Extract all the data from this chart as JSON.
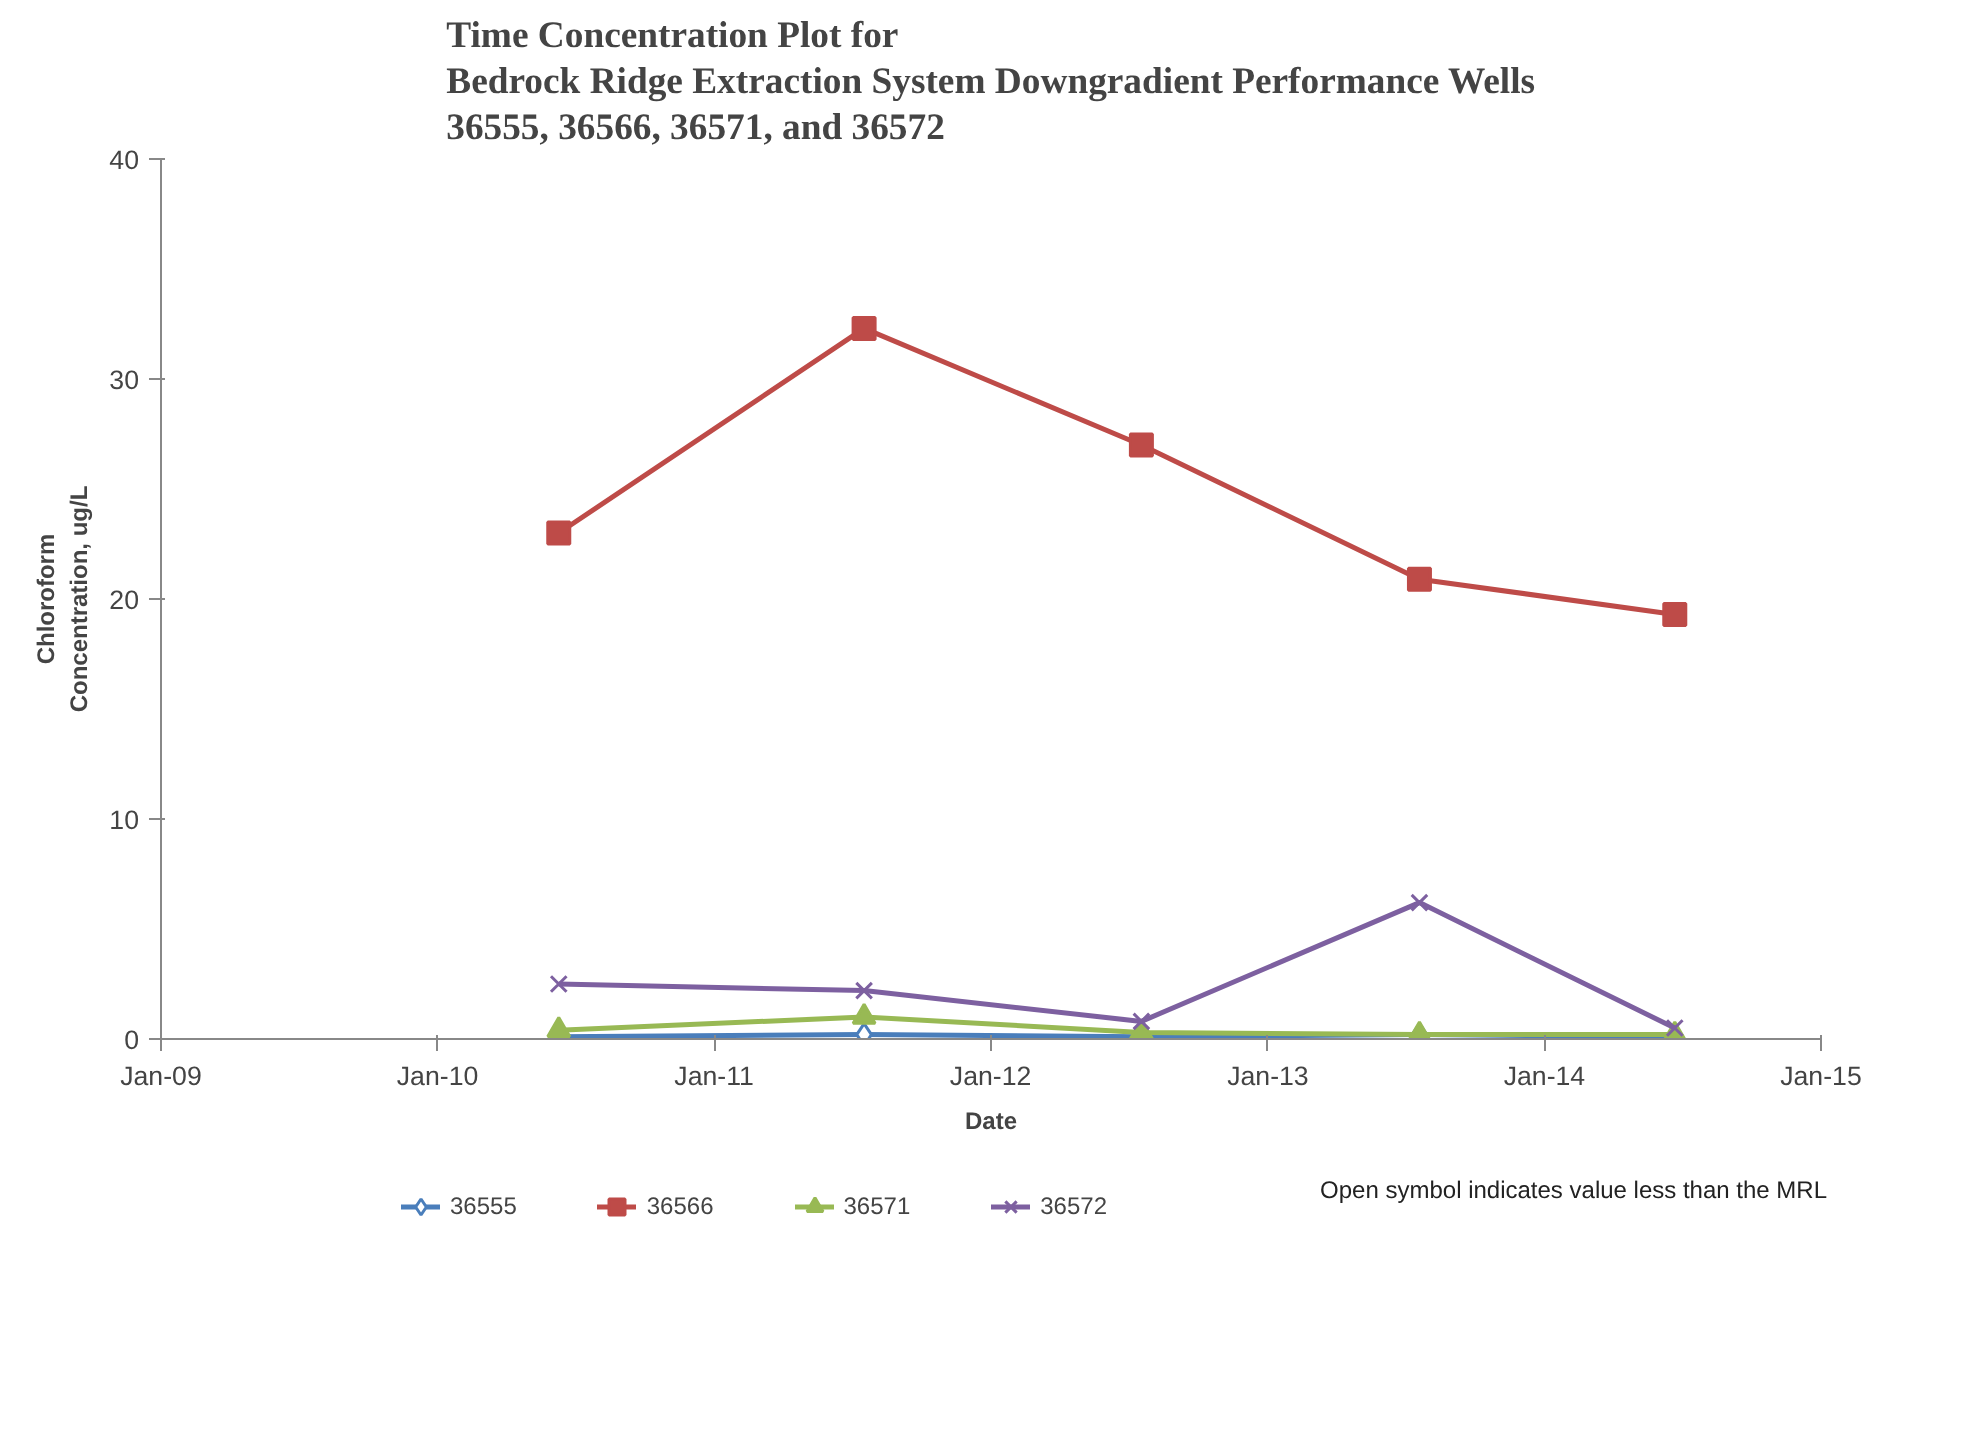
{
  "chart_data": {
    "type": "line",
    "title": "Time Concentration Plot for\nBedrock Ridge Extraction System Downgradient Performance Wells\n36555, 36566, 36571, and 36572",
    "xlabel": "Date",
    "ylabel": "Chloroform\nConcentration, ug/L",
    "x": [
      "2010-06-10",
      "2011-07-18",
      "2012-07-18",
      "2013-07-20",
      "2014-06-22"
    ],
    "series": [
      {
        "name": "36555",
        "color": "#4a7ebb",
        "marker": "diamond",
        "values": [
          0.1,
          0.2,
          0.1,
          0.2,
          0.1
        ]
      },
      {
        "name": "36566",
        "color": "#be4b48",
        "marker": "square",
        "values": [
          23.0,
          32.3,
          27.0,
          20.9,
          19.3
        ]
      },
      {
        "name": "36571",
        "color": "#98b954",
        "marker": "triangle",
        "values": [
          0.4,
          1.0,
          0.3,
          0.2,
          0.2
        ]
      },
      {
        "name": "36572",
        "color": "#7d60a0",
        "marker": "cross",
        "values": [
          2.5,
          2.2,
          0.8,
          6.2,
          0.5
        ]
      }
    ],
    "xlim": [
      "2009-01-01",
      "2015-01-01"
    ],
    "xticks": [
      {
        "value": "2009-01-01",
        "label": "Jan-09"
      },
      {
        "value": "2010-01-01",
        "label": "Jan-10"
      },
      {
        "value": "2011-01-01",
        "label": "Jan-11"
      },
      {
        "value": "2012-01-01",
        "label": "Jan-12"
      },
      {
        "value": "2013-01-01",
        "label": "Jan-13"
      },
      {
        "value": "2014-01-01",
        "label": "Jan-14"
      },
      {
        "value": "2015-01-01",
        "label": "Jan-15"
      }
    ],
    "ylim": [
      0,
      40
    ],
    "yticks": [
      0,
      10,
      20,
      30,
      40
    ],
    "grid": false,
    "legend": "bottom",
    "line_style": "solid",
    "annotations": [
      "Open symbol indicates value less than the MRL"
    ]
  }
}
